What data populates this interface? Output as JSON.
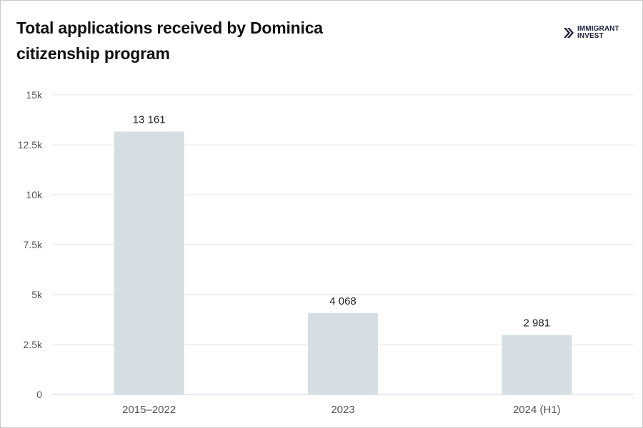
{
  "header": {
    "title": "Total applications received by Dominica citizenship program"
  },
  "brand": {
    "logo_line1": "IMMIGRANT",
    "logo_line2": "INVEST",
    "logo_icon": "double-chevron-right-icon",
    "logo_color": "#1a1f36"
  },
  "chart_data": {
    "type": "bar",
    "title": "Total applications received by Dominica citizenship program",
    "xlabel": "",
    "ylabel": "",
    "categories": [
      "2015–2022",
      "2023",
      "2024 (H1)"
    ],
    "values": [
      13161,
      4068,
      2981
    ],
    "value_labels": [
      "13 161",
      "4 068",
      "2 981"
    ],
    "ylim": [
      0,
      15000
    ],
    "yticks": [
      0,
      2500,
      5000,
      7500,
      10000,
      12500,
      15000
    ],
    "ytick_labels": [
      "0",
      "2.5k",
      "5k",
      "7.5k",
      "10k",
      "12.5k",
      "15k"
    ],
    "grid": true,
    "legend": "none",
    "bar_color": "#d5dfe3",
    "grid_color": "#e6e6e6",
    "axis_color": "#c8d0e0"
  }
}
